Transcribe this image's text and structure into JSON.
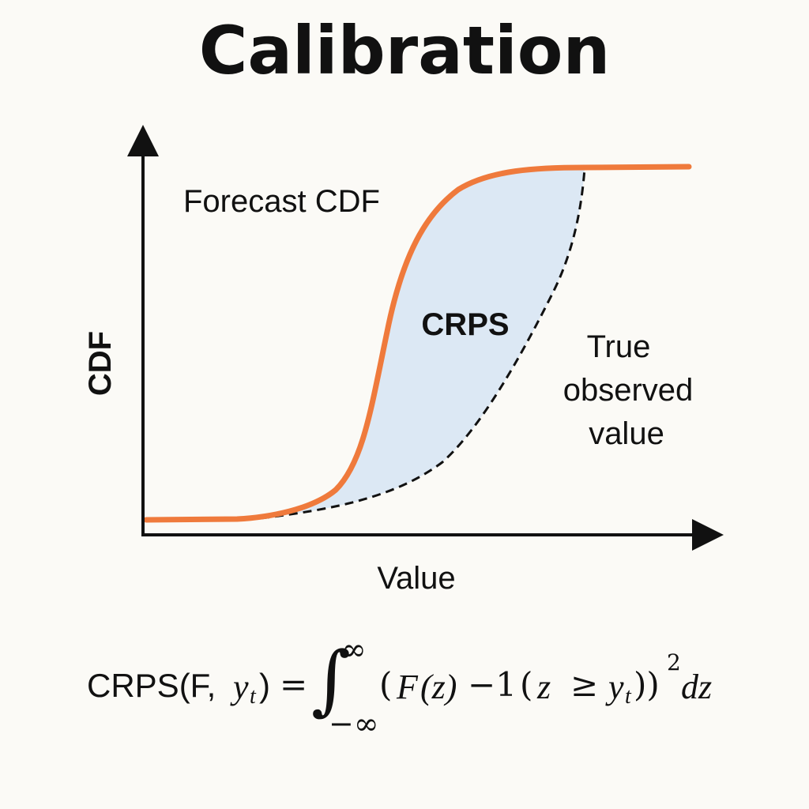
{
  "title": "Calibration",
  "diagram": {
    "y_axis_label": "CDF",
    "x_axis_label": "Value",
    "forecast_label": "Forecast CDF",
    "area_label": "CRPS",
    "observed_label": [
      "True",
      "observed",
      "value"
    ],
    "colors": {
      "forecast_curve": "#ef7a3c",
      "area_fill": "#dce8f4",
      "observed_curve": "#111111",
      "axes": "#111111"
    }
  },
  "formula": {
    "lhs_name": "CRPS(F,",
    "lhs_y": "y",
    "lhs_sub": "t",
    "lhs_close": ")",
    "equals": "=",
    "integral": "∫",
    "upper_limit": "∞",
    "lower_limit": "−∞",
    "open_paren": "(",
    "F": "F",
    "z_arg": "(z)",
    "minus_one": "−1",
    "indicator_open": "(",
    "z": "z",
    "geq": "≥",
    "y": "y",
    "sub_t": "t",
    "close": "))",
    "exponent": "2",
    "dz": "dz"
  }
}
